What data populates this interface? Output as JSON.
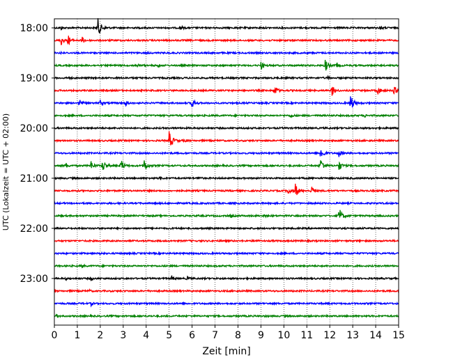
{
  "chart_data": {
    "type": "line",
    "title": "",
    "xlabel": "Zeit  [min]",
    "ylabel": "UTC (Lokalzeit = UTC + 02:00)",
    "xlim": [
      0,
      15
    ],
    "x_ticks": [
      "0",
      "1",
      "2",
      "3",
      "4",
      "5",
      "6",
      "7",
      "8",
      "9",
      "10",
      "11",
      "12",
      "13",
      "14",
      "15"
    ],
    "y_tick_labels": [
      "18:00",
      "19:00",
      "20:00",
      "21:00",
      "22:00",
      "23:00"
    ],
    "grid_x": true,
    "trace_interval_minutes": 15,
    "trace_colors": [
      "#000000",
      "#ff0000",
      "#0000ff",
      "#008000"
    ],
    "series": [
      {
        "start": "18:00",
        "events": [
          {
            "t": 1.9,
            "amp": 1.0
          },
          {
            "t": 0.3,
            "amp": 0.2
          },
          {
            "t": 5.5,
            "amp": 0.2
          },
          {
            "t": 14.2,
            "amp": 0.25
          }
        ]
      },
      {
        "start": "18:15",
        "events": [
          {
            "t": 0.3,
            "amp": 0.5
          },
          {
            "t": 0.6,
            "amp": 0.6
          },
          {
            "t": 1.2,
            "amp": 0.4
          }
        ]
      },
      {
        "start": "18:30",
        "events": [
          {
            "t": 0.3,
            "amp": 0.15
          }
        ]
      },
      {
        "start": "18:45",
        "events": [
          {
            "t": 3.6,
            "amp": 0.2
          },
          {
            "t": 4.5,
            "amp": 0.15
          },
          {
            "t": 9.0,
            "amp": 0.5
          },
          {
            "t": 11.8,
            "amp": 0.7
          },
          {
            "t": 12.3,
            "amp": 0.3
          }
        ]
      },
      {
        "start": "19:00",
        "events": [
          {
            "t": 0.6,
            "amp": 0.15
          },
          {
            "t": 11.9,
            "amp": 0.15
          }
        ]
      },
      {
        "start": "19:15",
        "events": [
          {
            "t": 9.6,
            "amp": 0.6
          },
          {
            "t": 12.1,
            "amp": 0.6
          },
          {
            "t": 14.1,
            "amp": 0.5
          },
          {
            "t": 14.8,
            "amp": 0.5
          }
        ]
      },
      {
        "start": "19:30",
        "events": [
          {
            "t": 1.1,
            "amp": 0.4
          },
          {
            "t": 2.0,
            "amp": 0.35
          },
          {
            "t": 3.1,
            "amp": 0.35
          },
          {
            "t": 6.0,
            "amp": 0.6
          },
          {
            "t": 12.9,
            "amp": 0.9
          }
        ]
      },
      {
        "start": "19:45",
        "events": [
          {
            "t": 10.3,
            "amp": 0.25
          },
          {
            "t": 13.5,
            "amp": 0.2
          }
        ]
      },
      {
        "start": "20:00",
        "events": []
      },
      {
        "start": "20:15",
        "events": [
          {
            "t": 5.0,
            "amp": 1.0
          },
          {
            "t": 5.7,
            "amp": 0.2
          }
        ]
      },
      {
        "start": "20:30",
        "events": [
          {
            "t": 11.6,
            "amp": 0.8
          },
          {
            "t": 12.4,
            "amp": 0.4
          }
        ]
      },
      {
        "start": "20:45",
        "events": [
          {
            "t": 0.5,
            "amp": 0.3
          },
          {
            "t": 1.6,
            "amp": 0.5
          },
          {
            "t": 2.1,
            "amp": 0.7
          },
          {
            "t": 2.9,
            "amp": 0.7
          },
          {
            "t": 3.9,
            "amp": 0.8
          },
          {
            "t": 11.6,
            "amp": 0.8
          },
          {
            "t": 12.4,
            "amp": 0.6
          }
        ]
      },
      {
        "start": "21:00",
        "events": [
          {
            "t": 4.6,
            "amp": 0.2
          },
          {
            "t": 6.3,
            "amp": 0.2
          }
        ]
      },
      {
        "start": "21:15",
        "events": [
          {
            "t": 10.2,
            "amp": 0.5
          },
          {
            "t": 10.5,
            "amp": 0.8
          },
          {
            "t": 11.2,
            "amp": 0.5
          }
        ]
      },
      {
        "start": "21:30",
        "events": []
      },
      {
        "start": "21:45",
        "events": [
          {
            "t": 7.7,
            "amp": 0.2
          },
          {
            "t": 9.1,
            "amp": 0.2
          },
          {
            "t": 12.4,
            "amp": 0.9
          }
        ]
      },
      {
        "start": "22:00",
        "events": []
      },
      {
        "start": "22:15",
        "events": [
          {
            "t": 8.7,
            "amp": 0.2
          }
        ]
      },
      {
        "start": "22:30",
        "events": [
          {
            "t": 2.0,
            "amp": 0.15
          }
        ]
      },
      {
        "start": "22:45",
        "events": [
          {
            "t": 1.2,
            "amp": 0.15
          }
        ]
      },
      {
        "start": "23:00",
        "events": [
          {
            "t": 0.5,
            "amp": 0.15
          },
          {
            "t": 1.6,
            "amp": 0.2
          },
          {
            "t": 5.1,
            "amp": 0.3
          },
          {
            "t": 5.8,
            "amp": 0.2
          }
        ]
      },
      {
        "start": "23:15",
        "events": [
          {
            "t": 1.5,
            "amp": 0.15
          }
        ]
      },
      {
        "start": "23:30",
        "events": [
          {
            "t": 1.6,
            "amp": 0.2
          }
        ]
      },
      {
        "start": "23:45",
        "events": [
          {
            "t": 0.1,
            "amp": 0.15
          }
        ]
      }
    ]
  }
}
